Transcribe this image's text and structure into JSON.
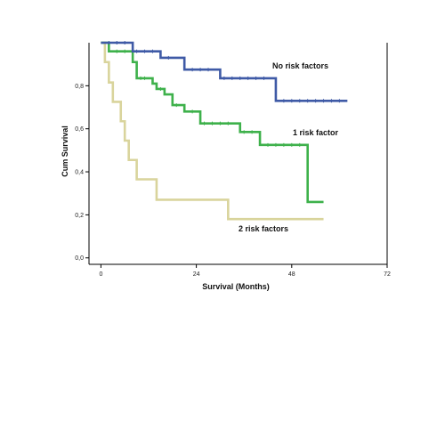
{
  "chart_data": {
    "type": "line",
    "subtype": "kaplan-meier step",
    "xlabel": "Survival (Months)",
    "ylabel": "Cum Survival",
    "xlim": [
      -3,
      72
    ],
    "ylim": [
      -0.03,
      1.0
    ],
    "xticks": [
      0,
      24,
      48,
      72
    ],
    "xtick_labels": [
      "0",
      "24",
      "48",
      "72"
    ],
    "yticks": [
      0.0,
      0.2,
      0.4,
      0.6,
      0.8
    ],
    "ytick_labels": [
      "0,0",
      "0,2",
      "0,4",
      "0,6",
      "0,8"
    ],
    "grid": false,
    "series": [
      {
        "name": "No risk factors",
        "color": "#3f5aa6",
        "x": [
          0,
          8,
          15,
          21,
          30,
          44,
          62
        ],
        "y": [
          1.0,
          0.96,
          0.93,
          0.875,
          0.835,
          0.73,
          0.73
        ],
        "censor_x": [
          2,
          4,
          6,
          9,
          11,
          13,
          17,
          23,
          25,
          27,
          31,
          33,
          35,
          37,
          39,
          41,
          46,
          48,
          50,
          52,
          54,
          56,
          58,
          60
        ]
      },
      {
        "name": "1 risk factor",
        "color": "#3eb14b",
        "x": [
          0,
          2,
          8,
          9,
          13,
          14,
          16,
          18,
          21,
          25,
          35,
          40,
          52,
          56
        ],
        "y": [
          1.0,
          0.96,
          0.91,
          0.835,
          0.81,
          0.785,
          0.76,
          0.71,
          0.68,
          0.625,
          0.585,
          0.525,
          0.26,
          0.26
        ],
        "censor_x": [
          4,
          6,
          10,
          11,
          15,
          19,
          23,
          26,
          28,
          30,
          32,
          36,
          38,
          42,
          44,
          46,
          48,
          50
        ]
      },
      {
        "name": "2 risk factors",
        "color": "#d9d49c",
        "x": [
          0,
          1,
          2,
          3,
          5,
          6,
          7,
          9,
          14,
          32,
          56
        ],
        "y": [
          1.0,
          0.91,
          0.815,
          0.725,
          0.635,
          0.545,
          0.455,
          0.365,
          0.27,
          0.18,
          0.18
        ],
        "censor_x": []
      }
    ],
    "annotations": [
      {
        "text": "No risk factors",
        "series": 0
      },
      {
        "text": "1 risk factor",
        "series": 1
      },
      {
        "text": "2 risk factors",
        "series": 2
      }
    ]
  }
}
